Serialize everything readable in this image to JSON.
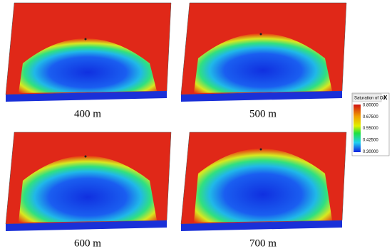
{
  "panels": [
    {
      "label": "400 m"
    },
    {
      "label": "500 m"
    },
    {
      "label": "600 m"
    },
    {
      "label": "700 m"
    }
  ],
  "legend": {
    "title": "Saturation of Oil",
    "close": "X",
    "ticks": [
      "0.80000",
      "0.67500",
      "0.55000",
      "0.42500",
      "0.30000"
    ]
  }
}
